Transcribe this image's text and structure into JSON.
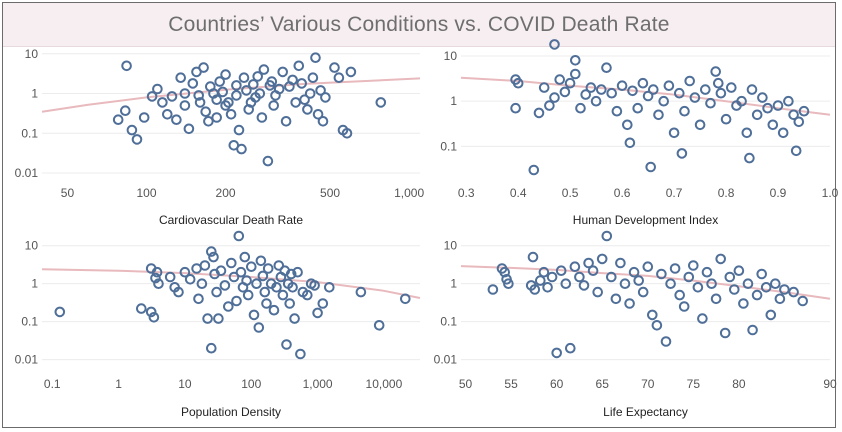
{
  "title": "Countries’ Various Conditions vs. COVID Death Rate",
  "colors": {
    "point": "#4f6f98",
    "trend": "#e8b9bd",
    "grid": "#ececec",
    "tick": "#555555",
    "label": "#222222",
    "title_bg": "#f6eef0"
  },
  "chart_data": [
    {
      "type": "scatter",
      "xlabel": "Cardiovascular Death Rate",
      "ylabel": "",
      "xscale": "log",
      "yscale": "log",
      "xlim": [
        40,
        1100
      ],
      "ylim": [
        0.0075,
        14
      ],
      "xticks": [
        50,
        100,
        200,
        500,
        1000
      ],
      "xtick_labels": [
        "50",
        "100",
        "200",
        "500",
        "1,000"
      ],
      "yticks": [
        0.01,
        0.1,
        1,
        10
      ],
      "ytick_labels": [
        "0.01",
        "0.1",
        "1",
        "10"
      ],
      "trend": [
        [
          40,
          0.35
        ],
        [
          60,
          0.52
        ],
        [
          100,
          0.8
        ],
        [
          200,
          1.25
        ],
        [
          400,
          1.75
        ],
        [
          1100,
          2.4
        ]
      ],
      "points": [
        [
          84,
          5.0
        ],
        [
          78,
          0.22
        ],
        [
          83,
          0.37
        ],
        [
          88,
          0.12
        ],
        [
          92,
          0.07
        ],
        [
          98,
          0.25
        ],
        [
          105,
          0.85
        ],
        [
          110,
          1.3
        ],
        [
          115,
          0.6
        ],
        [
          120,
          0.3
        ],
        [
          125,
          0.85
        ],
        [
          130,
          0.22
        ],
        [
          135,
          2.5
        ],
        [
          140,
          1.0
        ],
        [
          140,
          0.5
        ],
        [
          145,
          0.13
        ],
        [
          150,
          1.8
        ],
        [
          155,
          3.5
        ],
        [
          158,
          0.9
        ],
        [
          160,
          0.6
        ],
        [
          165,
          4.5
        ],
        [
          168,
          0.35
        ],
        [
          172,
          0.2
        ],
        [
          175,
          1.5
        ],
        [
          180,
          1.0
        ],
        [
          185,
          0.7
        ],
        [
          185,
          0.25
        ],
        [
          190,
          2.0
        ],
        [
          195,
          1.1
        ],
        [
          200,
          3.0
        ],
        [
          200,
          0.5
        ],
        [
          205,
          0.6
        ],
        [
          210,
          0.3
        ],
        [
          215,
          0.05
        ],
        [
          220,
          1.6
        ],
        [
          220,
          0.9
        ],
        [
          225,
          0.12
        ],
        [
          230,
          0.04
        ],
        [
          235,
          2.5
        ],
        [
          240,
          1.2
        ],
        [
          245,
          0.4
        ],
        [
          250,
          0.6
        ],
        [
          255,
          1.7
        ],
        [
          260,
          0.8
        ],
        [
          265,
          2.7
        ],
        [
          270,
          1.0
        ],
        [
          275,
          0.25
        ],
        [
          280,
          4.0
        ],
        [
          290,
          0.02
        ],
        [
          295,
          1.6
        ],
        [
          300,
          2.0
        ],
        [
          305,
          0.5
        ],
        [
          310,
          0.9
        ],
        [
          320,
          1.3
        ],
        [
          330,
          3.5
        ],
        [
          340,
          0.2
        ],
        [
          350,
          1.5
        ],
        [
          360,
          2.2
        ],
        [
          370,
          0.6
        ],
        [
          380,
          5.0
        ],
        [
          390,
          1.8
        ],
        [
          400,
          0.7
        ],
        [
          410,
          0.4
        ],
        [
          420,
          1.0
        ],
        [
          430,
          2.5
        ],
        [
          440,
          8.0
        ],
        [
          450,
          0.3
        ],
        [
          460,
          1.2
        ],
        [
          470,
          0.2
        ],
        [
          480,
          0.8
        ],
        [
          520,
          4.5
        ],
        [
          540,
          2.5
        ],
        [
          560,
          0.12
        ],
        [
          580,
          0.1
        ],
        [
          600,
          3.5
        ],
        [
          780,
          0.6
        ]
      ]
    },
    {
      "type": "scatter",
      "xlabel": "Human Development Index",
      "ylabel": "",
      "xscale": "linear",
      "yscale": "log",
      "xlim": [
        0.29,
        1.0
      ],
      "ylim": [
        0.02,
        15
      ],
      "xticks": [
        0.3,
        0.4,
        0.5,
        0.6,
        0.7,
        0.8,
        0.9,
        1.0
      ],
      "xtick_labels": [
        "0.3",
        "0.4",
        "0.5",
        "0.6",
        "0.7",
        "0.8",
        "0.9",
        "1.0"
      ],
      "yticks": [
        0.1,
        1,
        10
      ],
      "ytick_labels": [
        "0.1",
        "1",
        "10"
      ],
      "trend": [
        [
          0.29,
          3.3
        ],
        [
          0.4,
          2.8
        ],
        [
          0.5,
          2.2
        ],
        [
          0.6,
          1.8
        ],
        [
          0.7,
          1.4
        ],
        [
          0.8,
          1.0
        ],
        [
          0.9,
          0.7
        ],
        [
          1.0,
          0.5
        ]
      ],
      "points": [
        [
          0.395,
          3.0
        ],
        [
          0.4,
          2.5
        ],
        [
          0.395,
          0.7
        ],
        [
          0.43,
          0.03
        ],
        [
          0.44,
          0.55
        ],
        [
          0.45,
          2.0
        ],
        [
          0.46,
          0.8
        ],
        [
          0.47,
          1.2
        ],
        [
          0.47,
          18.0
        ],
        [
          0.48,
          3.0
        ],
        [
          0.49,
          1.6
        ],
        [
          0.5,
          2.5
        ],
        [
          0.51,
          8.0
        ],
        [
          0.51,
          4.0
        ],
        [
          0.52,
          0.7
        ],
        [
          0.53,
          1.4
        ],
        [
          0.54,
          2.0
        ],
        [
          0.55,
          1.0
        ],
        [
          0.56,
          1.8
        ],
        [
          0.57,
          5.5
        ],
        [
          0.58,
          1.5
        ],
        [
          0.59,
          0.6
        ],
        [
          0.6,
          2.2
        ],
        [
          0.61,
          0.3
        ],
        [
          0.615,
          0.12
        ],
        [
          0.62,
          1.7
        ],
        [
          0.63,
          0.7
        ],
        [
          0.64,
          2.5
        ],
        [
          0.65,
          1.3
        ],
        [
          0.655,
          0.035
        ],
        [
          0.66,
          1.8
        ],
        [
          0.67,
          0.5
        ],
        [
          0.68,
          1.0
        ],
        [
          0.69,
          2.2
        ],
        [
          0.7,
          0.2
        ],
        [
          0.71,
          1.5
        ],
        [
          0.715,
          0.07
        ],
        [
          0.72,
          0.6
        ],
        [
          0.73,
          2.8
        ],
        [
          0.74,
          1.2
        ],
        [
          0.75,
          0.3
        ],
        [
          0.76,
          1.8
        ],
        [
          0.77,
          0.9
        ],
        [
          0.78,
          4.5
        ],
        [
          0.785,
          2.5
        ],
        [
          0.79,
          1.5
        ],
        [
          0.8,
          0.4
        ],
        [
          0.81,
          2.0
        ],
        [
          0.82,
          0.8
        ],
        [
          0.83,
          1.0
        ],
        [
          0.84,
          0.2
        ],
        [
          0.845,
          0.055
        ],
        [
          0.85,
          1.8
        ],
        [
          0.86,
          0.5
        ],
        [
          0.87,
          1.2
        ],
        [
          0.88,
          0.7
        ],
        [
          0.89,
          0.3
        ],
        [
          0.9,
          0.8
        ],
        [
          0.91,
          0.2
        ],
        [
          0.92,
          1.0
        ],
        [
          0.93,
          0.5
        ],
        [
          0.935,
          0.08
        ],
        [
          0.94,
          0.35
        ],
        [
          0.95,
          0.6
        ]
      ]
    },
    {
      "type": "scatter",
      "xlabel": "Population Density",
      "ylabel": "",
      "xscale": "log",
      "yscale": "log",
      "xlim": [
        0.07,
        35000
      ],
      "ylim": [
        0.006,
        18
      ],
      "xticks": [
        0.1,
        1,
        10,
        100,
        1000,
        10000
      ],
      "xtick_labels": [
        "0.1",
        "1",
        "10",
        "100",
        "1,000",
        "10,000"
      ],
      "yticks": [
        0.01,
        0.1,
        1,
        10
      ],
      "ytick_labels": [
        "0.01",
        "0.1",
        "1",
        "10"
      ],
      "trend": [
        [
          0.07,
          2.4
        ],
        [
          1,
          2.2
        ],
        [
          10,
          1.9
        ],
        [
          100,
          1.5
        ],
        [
          1000,
          1.1
        ],
        [
          10000,
          0.65
        ],
        [
          35000,
          0.42
        ]
      ],
      "points": [
        [
          0.13,
          0.18
        ],
        [
          2.2,
          0.22
        ],
        [
          3.1,
          2.5
        ],
        [
          3.1,
          0.18
        ],
        [
          3.4,
          0.13
        ],
        [
          3.6,
          1.4
        ],
        [
          3.8,
          2.0
        ],
        [
          4.0,
          1.0
        ],
        [
          6.0,
          1.5
        ],
        [
          7.0,
          0.8
        ],
        [
          8.0,
          0.6
        ],
        [
          10,
          2.0
        ],
        [
          12,
          1.3
        ],
        [
          15,
          2.5
        ],
        [
          16,
          0.4
        ],
        [
          18,
          1.0
        ],
        [
          20,
          3.0
        ],
        [
          22,
          0.12
        ],
        [
          25,
          0.02
        ],
        [
          25,
          7.0
        ],
        [
          27,
          5.0
        ],
        [
          28,
          1.8
        ],
        [
          30,
          0.6
        ],
        [
          32,
          0.12
        ],
        [
          35,
          2.2
        ],
        [
          40,
          0.9
        ],
        [
          45,
          0.25
        ],
        [
          50,
          3.5
        ],
        [
          55,
          1.5
        ],
        [
          60,
          0.35
        ],
        [
          65,
          18.0
        ],
        [
          70,
          2.0
        ],
        [
          75,
          0.8
        ],
        [
          80,
          5.0
        ],
        [
          85,
          1.2
        ],
        [
          90,
          0.5
        ],
        [
          100,
          2.8
        ],
        [
          110,
          0.15
        ],
        [
          120,
          1.0
        ],
        [
          130,
          0.07
        ],
        [
          140,
          4.0
        ],
        [
          150,
          1.6
        ],
        [
          160,
          0.6
        ],
        [
          170,
          0.3
        ],
        [
          180,
          2.5
        ],
        [
          200,
          1.0
        ],
        [
          220,
          0.2
        ],
        [
          240,
          0.8
        ],
        [
          260,
          3.0
        ],
        [
          280,
          1.5
        ],
        [
          300,
          0.5
        ],
        [
          320,
          2.2
        ],
        [
          340,
          0.025
        ],
        [
          360,
          1.0
        ],
        [
          380,
          0.3
        ],
        [
          400,
          1.8
        ],
        [
          420,
          0.8
        ],
        [
          450,
          0.12
        ],
        [
          500,
          2.0
        ],
        [
          550,
          0.014
        ],
        [
          600,
          0.6
        ],
        [
          700,
          0.5
        ],
        [
          800,
          1.0
        ],
        [
          900,
          0.9
        ],
        [
          1000,
          0.17
        ],
        [
          1200,
          0.3
        ],
        [
          1500,
          0.8
        ],
        [
          4500,
          0.6
        ],
        [
          8500,
          0.08
        ],
        [
          21000,
          0.4
        ]
      ]
    },
    {
      "type": "scatter",
      "xlabel": "Life Expectancy",
      "ylabel": "",
      "xscale": "linear",
      "yscale": "log",
      "xlim": [
        49.5,
        90
      ],
      "ylim": [
        0.006,
        18
      ],
      "xticks": [
        50,
        55,
        60,
        65,
        70,
        75,
        80,
        90
      ],
      "xtick_labels": [
        "50",
        "55",
        "60",
        "65",
        "70",
        "75",
        "80",
        "90"
      ],
      "yticks": [
        0.01,
        0.1,
        1,
        10
      ],
      "ytick_labels": [
        "0.01",
        "0.1",
        "1",
        "10"
      ],
      "trend": [
        [
          49.5,
          2.9
        ],
        [
          55,
          2.6
        ],
        [
          60,
          2.3
        ],
        [
          65,
          1.9
        ],
        [
          70,
          1.6
        ],
        [
          75,
          1.2
        ],
        [
          80,
          0.85
        ],
        [
          85,
          0.6
        ],
        [
          90,
          0.4
        ]
      ],
      "points": [
        [
          53.0,
          0.7
        ],
        [
          54.0,
          2.5
        ],
        [
          54.3,
          2.0
        ],
        [
          54.5,
          1.3
        ],
        [
          54.7,
          1.0
        ],
        [
          57.2,
          0.9
        ],
        [
          57.4,
          5.0
        ],
        [
          57.6,
          0.7
        ],
        [
          58.2,
          1.2
        ],
        [
          58.6,
          2.0
        ],
        [
          59.0,
          0.8
        ],
        [
          59.5,
          1.5
        ],
        [
          60.0,
          0.015
        ],
        [
          60.5,
          2.2
        ],
        [
          61.0,
          1.0
        ],
        [
          61.5,
          0.02
        ],
        [
          62.0,
          2.8
        ],
        [
          62.5,
          1.5
        ],
        [
          63.0,
          0.9
        ],
        [
          63.5,
          3.5
        ],
        [
          64.0,
          2.2
        ],
        [
          64.5,
          0.6
        ],
        [
          65.0,
          4.5
        ],
        [
          65.5,
          18.0
        ],
        [
          66.0,
          1.5
        ],
        [
          66.5,
          0.4
        ],
        [
          67.0,
          3.5
        ],
        [
          67.5,
          1.0
        ],
        [
          68.0,
          0.3
        ],
        [
          68.5,
          2.0
        ],
        [
          69.0,
          1.2
        ],
        [
          69.5,
          0.6
        ],
        [
          70.0,
          2.8
        ],
        [
          70.5,
          0.15
        ],
        [
          71.0,
          0.08
        ],
        [
          71.5,
          1.8
        ],
        [
          72.0,
          0.03
        ],
        [
          72.5,
          1.0
        ],
        [
          73.0,
          2.5
        ],
        [
          73.5,
          0.5
        ],
        [
          74.0,
          0.25
        ],
        [
          74.5,
          1.5
        ],
        [
          75.0,
          3.0
        ],
        [
          75.5,
          0.8
        ],
        [
          76.0,
          0.12
        ],
        [
          76.5,
          2.0
        ],
        [
          77.0,
          1.0
        ],
        [
          77.5,
          0.4
        ],
        [
          78.0,
          4.5
        ],
        [
          78.5,
          0.05
        ],
        [
          79.0,
          1.5
        ],
        [
          79.5,
          0.7
        ],
        [
          80.0,
          2.2
        ],
        [
          80.5,
          0.3
        ],
        [
          81.0,
          1.0
        ],
        [
          81.5,
          0.06
        ],
        [
          82.0,
          0.5
        ],
        [
          82.5,
          1.8
        ],
        [
          83.0,
          0.8
        ],
        [
          83.5,
          0.15
        ],
        [
          84.0,
          1.0
        ],
        [
          84.5,
          0.4
        ],
        [
          85.0,
          0.7
        ],
        [
          86.0,
          0.6
        ],
        [
          87.0,
          0.35
        ]
      ]
    }
  ]
}
